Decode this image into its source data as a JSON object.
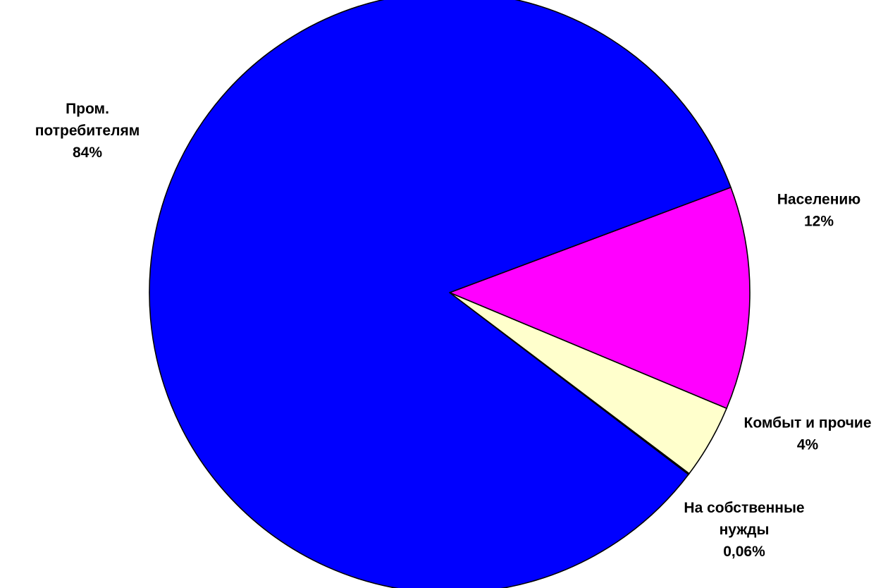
{
  "chart_data": {
    "type": "pie",
    "title": "",
    "start_angle_deg": -20.5,
    "direction": "clockwise",
    "slices": [
      {
        "name": "Населению",
        "label_lines": [
          "Населению",
          "12%"
        ],
        "value": 12,
        "color": "#FF00FF"
      },
      {
        "name": "Комбыт и прочие",
        "label_lines": [
          "Комбыт и прочие",
          "4%"
        ],
        "value": 4,
        "color": "#FFFFCC"
      },
      {
        "name": "На собственные нужды",
        "label_lines": [
          "На собственные",
          "нужды",
          "0,06%"
        ],
        "value": 0.06,
        "color": "#008000"
      },
      {
        "name": "Пром. потребителям",
        "label_lines": [
          "Пром.",
          "потребителям",
          "84%"
        ],
        "value": 84,
        "color": "#0000FF"
      }
    ]
  }
}
